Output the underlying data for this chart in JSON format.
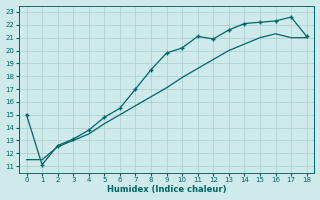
{
  "xlabel": "Humidex (Indice chaleur)",
  "ylabel": "",
  "background_color": "#ceeaea",
  "grid_color": "#aacccc",
  "line_color": "#006666",
  "xlim": [
    -0.5,
    18.5
  ],
  "ylim": [
    10.5,
    23.5
  ],
  "xticks": [
    0,
    1,
    2,
    3,
    4,
    5,
    6,
    7,
    8,
    9,
    10,
    11,
    12,
    13,
    14,
    15,
    16,
    17,
    18
  ],
  "yticks": [
    11,
    12,
    13,
    14,
    15,
    16,
    17,
    18,
    19,
    20,
    21,
    22,
    23
  ],
  "data_line1_x": [
    0,
    1,
    2,
    3,
    4,
    5,
    6,
    7,
    8,
    9,
    10,
    11,
    12,
    13,
    14,
    15,
    16,
    17,
    18
  ],
  "data_line1_y": [
    15.0,
    11.1,
    12.6,
    13.1,
    13.8,
    14.8,
    15.5,
    17.0,
    18.5,
    19.8,
    20.2,
    21.1,
    20.9,
    21.6,
    22.1,
    22.2,
    22.3,
    22.6,
    21.1
  ],
  "data_line2_x": [
    0,
    1,
    2,
    3,
    4,
    5,
    6,
    7,
    8,
    9,
    10,
    11,
    12,
    13,
    14,
    15,
    16,
    17,
    18
  ],
  "data_line2_y": [
    11.5,
    11.5,
    12.5,
    13.0,
    13.5,
    14.3,
    15.0,
    15.7,
    16.4,
    17.1,
    17.9,
    18.6,
    19.3,
    20.0,
    20.5,
    21.0,
    21.3,
    21.0,
    21.0
  ],
  "marker": "+",
  "markersize": 3.5,
  "linewidth": 0.9
}
